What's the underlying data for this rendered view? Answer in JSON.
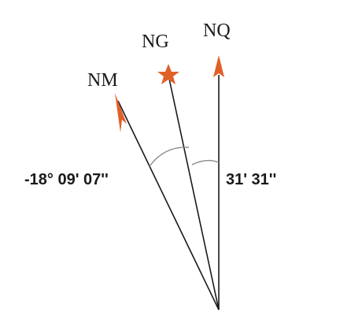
{
  "labels": {
    "grid_north": "NG",
    "true_north": "NQ",
    "magnetic_north": "NM",
    "magnetic_angle": "-18° 09' 07''",
    "grid_angle": "31' 31''"
  },
  "colors": {
    "line": "#1a1a1a",
    "arc": "#8a8a8a",
    "marker": "#e0602a"
  },
  "icons": {
    "star": "star-icon",
    "arrow": "arrowhead-icon"
  }
}
